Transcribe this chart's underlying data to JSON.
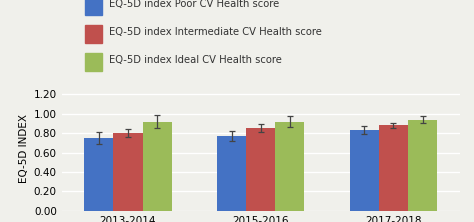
{
  "categories": [
    "2013-2014",
    "2015-2016",
    "2017-2018"
  ],
  "series": [
    {
      "label": "EQ-5D index Poor CV Health score",
      "color": "#4472C4",
      "values": [
        0.75,
        0.77,
        0.83
      ],
      "errors": [
        0.06,
        0.055,
        0.04
      ]
    },
    {
      "label": "EQ-5D index Intermediate CV Health score",
      "color": "#C0504D",
      "values": [
        0.8,
        0.85,
        0.88
      ],
      "errors": [
        0.04,
        0.04,
        0.03
      ]
    },
    {
      "label": "EQ-5D index Ideal CV Health score",
      "color": "#9BBB59",
      "values": [
        0.92,
        0.92,
        0.94
      ],
      "errors": [
        0.065,
        0.055,
        0.04
      ]
    }
  ],
  "ylabel": "EQ-5D INDEX",
  "ylim": [
    0.0,
    1.28
  ],
  "yticks": [
    0.0,
    0.2,
    0.4,
    0.6,
    0.8,
    1.0,
    1.2
  ],
  "bar_width": 0.22,
  "group_positions": [
    0,
    1,
    2
  ],
  "legend_fontsize": 7.2,
  "axis_fontsize": 7.5,
  "tick_fontsize": 7.5,
  "background_color": "#f0f0eb",
  "grid_color": "#ffffff",
  "error_color": "#444444"
}
